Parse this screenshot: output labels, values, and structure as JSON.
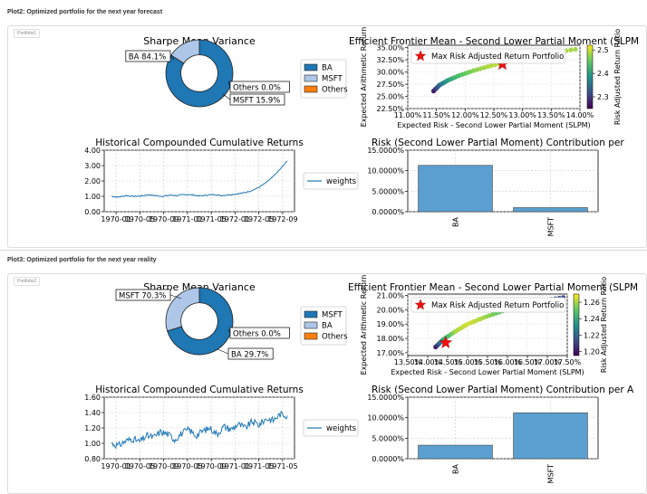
{
  "sections": [
    {
      "title_prefix": "Plot2:",
      "title": "Optimized portfolio for the next year forecast",
      "tab_label": "Portfolio1"
    },
    {
      "title_prefix": "Plot3:",
      "title": "Optimized portfolio for the next year reality",
      "tab_label": "Portfolio2"
    }
  ],
  "colors": {
    "dark_blue": "#1f77b4",
    "light_blue": "#aec7e8",
    "orange": "#ff7f0e",
    "bar": "#5a9fd0",
    "marker": "#ee1111"
  },
  "chart_data": [
    {
      "type": "pie",
      "variant": "donut",
      "title": "Sharpe Mean Variance",
      "slices": [
        {
          "label": "BA",
          "value": 84.1,
          "text": "BA 84.1%",
          "color": "#1f77b4"
        },
        {
          "label": "MSFT",
          "value": 15.9,
          "text": "MSFT 15.9%",
          "color": "#aec7e8"
        },
        {
          "label": "Others",
          "value": 0.0,
          "text": "Others 0.0%",
          "color": "#ff7f0e"
        }
      ],
      "legend": [
        "BA",
        "MSFT",
        "Others"
      ],
      "legend_placement": "right"
    },
    {
      "type": "scatter",
      "title": "Efficient Frontier Mean - Second Lower Partial Moment (SLPM",
      "xlabel": "Expected Risk - Second Lower Partial Moment (SLPM)",
      "ylabel": "Expected Arithmetic Return",
      "xticks": [
        "11.00%",
        "11.50%",
        "12.00%",
        "12.50%",
        "13.00%",
        "13.50%",
        "14.00%"
      ],
      "xlim": [
        11.0,
        14.0
      ],
      "yticks": [
        "22.50%",
        "25.00%",
        "27.50%",
        "30.00%",
        "32.50%",
        "35.00%"
      ],
      "ylim": [
        22.5,
        35.5
      ],
      "x": [
        11.45,
        11.55,
        11.7,
        11.9,
        12.15,
        12.45,
        12.8,
        13.2,
        13.6,
        14.0
      ],
      "y": [
        26.1,
        27.3,
        28.3,
        29.3,
        30.3,
        31.3,
        32.3,
        33.3,
        34.1,
        34.8
      ],
      "color_values": [
        2.27,
        2.34,
        2.4,
        2.44,
        2.47,
        2.49,
        2.5,
        2.5,
        2.49,
        2.48
      ],
      "colorbar_label": "Risk Adjusted Return Ratio",
      "colorbar_ticks": [
        "2.3",
        "2.4",
        "2.5"
      ],
      "colorbar_range": [
        2.25,
        2.52
      ],
      "highlight": {
        "label": "Max Risk Adjusted Return Portfolio",
        "x": 12.65,
        "y": 31.6
      },
      "legend_placement": "top-left"
    },
    {
      "type": "line",
      "title": "Historical Compounded Cumulative Returns",
      "series": [
        {
          "name": "weights"
        }
      ],
      "xticks": [
        "1970-01",
        "1970-05",
        "1970-09",
        "1971-01",
        "1971-05",
        "1972-01",
        "1972-05",
        "1972-09"
      ],
      "yticks": [
        "0.00",
        "1.00",
        "2.00",
        "3.00",
        "4.00"
      ],
      "ylim": [
        0,
        4
      ],
      "y": [
        1.0,
        0.95,
        1.05,
        1.0,
        1.02,
        1.1,
        1.05,
        1.0,
        1.08,
        1.05,
        1.12,
        1.1,
        1.02,
        1.08,
        1.12,
        1.05,
        1.1,
        1.15,
        1.22,
        1.35,
        1.55,
        1.85,
        2.25,
        2.75,
        3.3
      ],
      "legend_placement": "right"
    },
    {
      "type": "bar",
      "title": "Risk (Second Lower Partial Moment) Contribution per",
      "categories": [
        "BA",
        "MSFT"
      ],
      "values": [
        11.3,
        1.0
      ],
      "yticks": [
        "0.0000%",
        "5.0000%",
        "10.0000%",
        "15.0000%"
      ],
      "ylim": [
        0,
        15
      ]
    },
    {
      "type": "pie",
      "variant": "donut",
      "title": "Sharpe Mean Variance",
      "slices": [
        {
          "label": "MSFT",
          "value": 70.3,
          "text": "MSFT 70.3%",
          "color": "#1f77b4"
        },
        {
          "label": "BA",
          "value": 29.7,
          "text": "BA 29.7%",
          "color": "#aec7e8"
        },
        {
          "label": "Others",
          "value": 0.0,
          "text": "Others 0.0%",
          "color": "#ff7f0e"
        }
      ],
      "legend": [
        "MSFT",
        "BA",
        "Others"
      ],
      "legend_placement": "right"
    },
    {
      "type": "scatter",
      "title": "Efficient Frontier Mean - Second Lower Partial Moment (SLPM",
      "xlabel": "Expected Risk - Second Lower Partial Moment (SLPM)",
      "ylabel": "Expected Arithmetic Return",
      "xticks": [
        "13.50%",
        "14.00%",
        "14.50%",
        "15.00%",
        "15.50%",
        "16.00%",
        "16.50%",
        "17.00%",
        "17.50%"
      ],
      "xlim": [
        13.5,
        17.5
      ],
      "yticks": [
        "17.00%",
        "18.00%",
        "19.00%",
        "20.00%",
        "21.00%"
      ],
      "ylim": [
        16.8,
        21.1
      ],
      "x": [
        14.2,
        14.4,
        14.7,
        15.0,
        15.4,
        15.8,
        16.2,
        16.6,
        17.0,
        17.5
      ],
      "y": [
        17.4,
        17.95,
        18.5,
        19.0,
        19.45,
        19.85,
        20.2,
        20.45,
        20.7,
        20.9
      ],
      "color_values": [
        1.2,
        1.24,
        1.26,
        1.265,
        1.26,
        1.25,
        1.24,
        1.23,
        1.22,
        1.21
      ],
      "colorbar_label": "Risk Adjusted Return Ratio",
      "colorbar_ticks": [
        "1.20",
        "1.22",
        "1.24",
        "1.26"
      ],
      "colorbar_range": [
        1.195,
        1.27
      ],
      "highlight": {
        "label": "Max Risk Adjusted Return Portfolio",
        "x": 14.45,
        "y": 17.7
      },
      "legend_placement": "top-left"
    },
    {
      "type": "line",
      "title": "Historical Compounded Cumulative Returns",
      "series": [
        {
          "name": "weights"
        }
      ],
      "xticks": [
        "1970-01",
        "1970-05",
        "1970-09",
        "1970-05",
        "1970-09",
        "1971-01",
        "1971-05",
        "1971-05"
      ],
      "yticks": [
        "0.80",
        "1.00",
        "1.20",
        "1.40",
        "1.60"
      ],
      "ylim": [
        0.8,
        1.6
      ],
      "y": [
        1.0,
        0.97,
        1.03,
        1.06,
        1.02,
        1.1,
        1.08,
        1.15,
        1.12,
        1.05,
        1.13,
        1.18,
        1.1,
        1.16,
        1.2,
        1.12,
        1.22,
        1.18,
        1.25,
        1.2,
        1.28,
        1.24,
        1.32,
        1.3,
        1.38,
        1.36
      ],
      "legend_placement": "right"
    },
    {
      "type": "bar",
      "title": "Risk (Second Lower Partial Moment) Contribution per A",
      "categories": [
        "BA",
        "MSFT"
      ],
      "values": [
        3.3,
        11.2
      ],
      "yticks": [
        "0.0000%",
        "5.0000%",
        "10.0000%",
        "15.0000%"
      ],
      "ylim": [
        0,
        15
      ]
    }
  ]
}
